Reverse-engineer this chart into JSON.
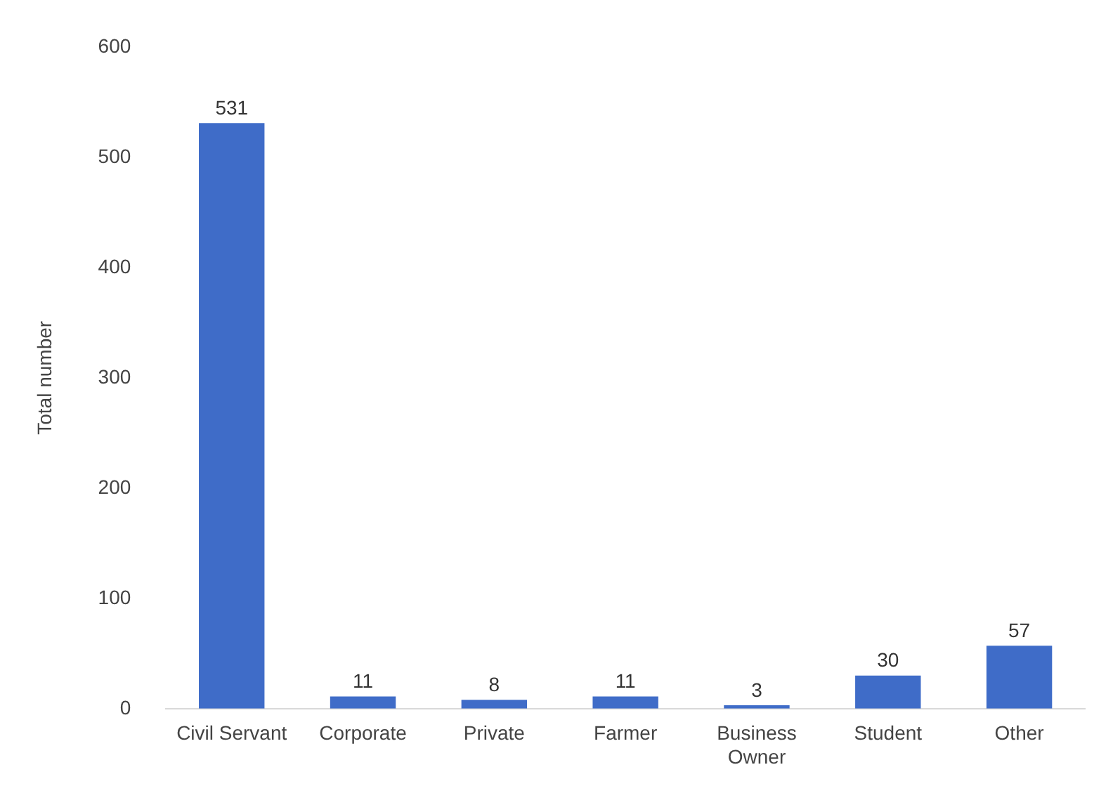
{
  "chart_data": {
    "type": "bar",
    "ylabel": "Total number",
    "categories": [
      "Civil Servant",
      "Corporate",
      "Private",
      "Farmer",
      "Business Owner",
      "Student",
      "Other"
    ],
    "values": [
      531,
      11,
      8,
      11,
      3,
      30,
      57
    ],
    "color": "#3f6cc8",
    "ylim": [
      0,
      600
    ],
    "yticks": [
      0,
      100,
      200,
      300,
      400,
      500,
      600
    ],
    "grid": false,
    "legend": false,
    "data_labels": true
  }
}
